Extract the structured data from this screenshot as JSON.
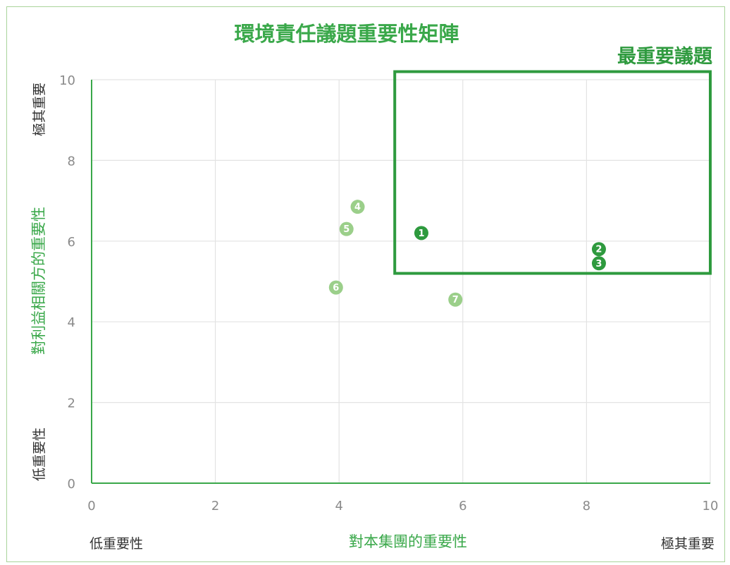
{
  "chart_data": {
    "type": "scatter",
    "title": "環境責任議題重要性矩陣",
    "xlabel": "對本集團的重要性",
    "ylabel": "對利益相關方的重要性",
    "xlim": [
      0,
      10
    ],
    "ylim": [
      0,
      10
    ],
    "x_ticks": [
      "0",
      "2",
      "4",
      "6",
      "8",
      "10"
    ],
    "y_ticks": [
      "0",
      "2",
      "4",
      "6",
      "8",
      "10"
    ],
    "grid": true,
    "x_axis_low_label": "低重要性",
    "x_axis_high_label": "極其重要",
    "y_axis_low_label": "低重要性",
    "y_axis_high_label": "極其重要",
    "highlight_zone": {
      "label": "最重要議題",
      "x_range": [
        4.9,
        10.0
      ],
      "y_range": [
        5.2,
        10.2
      ]
    },
    "points": [
      {
        "label": "1",
        "x": 5.33,
        "y": 6.2,
        "color": "#2e9a3e"
      },
      {
        "label": "2",
        "x": 8.2,
        "y": 5.8,
        "color": "#2e9a3e"
      },
      {
        "label": "3",
        "x": 8.2,
        "y": 5.45,
        "color": "#2e9a3e"
      },
      {
        "label": "4",
        "x": 4.3,
        "y": 6.85,
        "color": "#9bcf8a"
      },
      {
        "label": "5",
        "x": 4.12,
        "y": 6.3,
        "color": "#9bcf8a"
      },
      {
        "label": "6",
        "x": 3.95,
        "y": 4.85,
        "color": "#9bcf8a"
      },
      {
        "label": "7",
        "x": 5.88,
        "y": 4.55,
        "color": "#9bcf8a"
      }
    ]
  },
  "colors": {
    "accent": "#3aa84a",
    "zone": "#2e9a3e",
    "light_marker": "#9bcf8a",
    "grid": "#e3e3e3"
  }
}
